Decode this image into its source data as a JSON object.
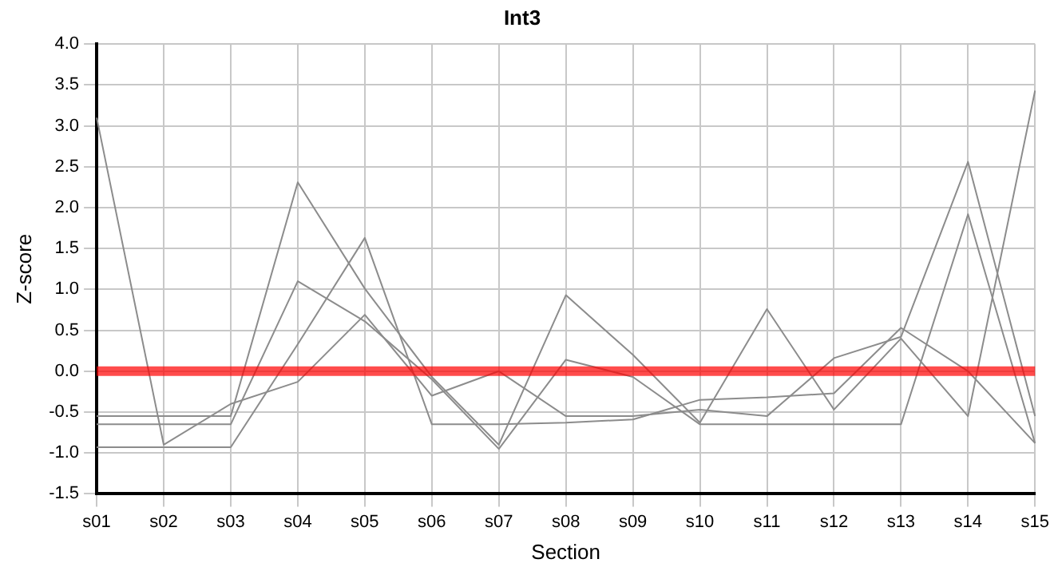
{
  "chart_data": {
    "type": "line",
    "title": "Int3",
    "xlabel": "Section",
    "ylabel": "Z-score",
    "categories": [
      "s01",
      "s02",
      "s03",
      "s04",
      "s05",
      "s06",
      "s07",
      "s08",
      "s09",
      "s10",
      "s11",
      "s12",
      "s13",
      "s14",
      "s15"
    ],
    "series": [
      {
        "color": "#8c8c8c",
        "values": [
          3.1,
          -0.9,
          -0.4,
          -0.13,
          0.69,
          -0.3,
          0.0,
          -0.55,
          -0.55,
          -0.47,
          -0.55,
          0.16,
          0.42,
          2.56,
          -0.55
        ]
      },
      {
        "color": "#8c8c8c",
        "values": [
          -0.55,
          -0.55,
          -0.55,
          2.31,
          1.01,
          -0.07,
          -0.9,
          0.93,
          0.2,
          -0.63,
          0.76,
          -0.47,
          0.4,
          -0.55,
          3.43
        ]
      },
      {
        "color": "#8c8c8c",
        "values": [
          -0.65,
          -0.65,
          -0.65,
          1.1,
          0.61,
          -0.1,
          -0.95,
          0.14,
          -0.07,
          -0.65,
          -0.65,
          -0.65,
          -0.65,
          1.92,
          -0.88
        ]
      },
      {
        "color": "#8c8c8c",
        "values": [
          -0.93,
          -0.93,
          -0.93,
          0.33,
          1.63,
          -0.65,
          -0.65,
          -0.63,
          -0.59,
          -0.35,
          -0.32,
          -0.27,
          0.53,
          0.0,
          -0.88
        ]
      }
    ],
    "ylim": [
      -1.5,
      4.0
    ],
    "yticks": [
      {
        "value": -1.5,
        "label": "-1.5"
      },
      {
        "value": -1,
        "label": "-1.0"
      },
      {
        "value": -0.5,
        "label": "-0.5"
      },
      {
        "value": 0,
        "label": "0.0"
      },
      {
        "value": 0.5,
        "label": "0.5"
      },
      {
        "value": 1,
        "label": "1.0"
      },
      {
        "value": 1.5,
        "label": "1.5"
      },
      {
        "value": 2,
        "label": "2.0"
      },
      {
        "value": 2.5,
        "label": "2.5"
      },
      {
        "value": 3,
        "label": "3.0"
      },
      {
        "value": 3.5,
        "label": "3.5"
      },
      {
        "value": 4,
        "label": "4.0"
      }
    ],
    "ref_lines": [
      {
        "axis": "y",
        "value": 0,
        "color": "#ff0000"
      }
    ],
    "grid": true,
    "legend": false,
    "marker": "none",
    "line_style": "solid"
  }
}
